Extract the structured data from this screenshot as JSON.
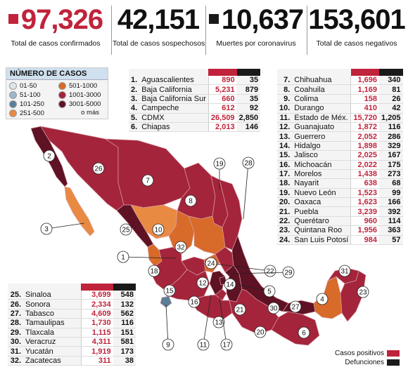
{
  "header": {
    "confirmed": {
      "value": "97,326",
      "label": "Total de casos confirmados",
      "color": "#c0233b"
    },
    "suspected": {
      "value": "42,151",
      "label": "Total de casos sospechosos"
    },
    "deaths": {
      "value": "10,637",
      "label": "Muertes por coronavirus",
      "color": "#1a1a1a"
    },
    "negative": {
      "value": "153,601",
      "label": "Total de casos negativos"
    }
  },
  "legend": {
    "title": "NÚMERO DE CASOS",
    "items": [
      {
        "label": "01-50",
        "color": "#dfe6ea"
      },
      {
        "label": "501-1000",
        "color": "#d86a2a"
      },
      {
        "label": "51-100",
        "color": "#9fb7c8"
      },
      {
        "label": "1001-3000",
        "color": "#a4243b"
      },
      {
        "label": "101-250",
        "color": "#5b7f99"
      },
      {
        "label": "3001-5000",
        "color": "#5e1224"
      },
      {
        "label": "251-500",
        "color": "#e98a42"
      }
    ],
    "more": "o más"
  },
  "colors": {
    "confirmed": "#c0233b",
    "deaths": "#1a1a1a",
    "ocean": "#ffffff",
    "stateStroke": "#d9a0a8"
  },
  "states": [
    {
      "n": "1.",
      "name": "Aguascalientes",
      "cases": "890",
      "deaths": "35"
    },
    {
      "n": "2.",
      "name": "Baja California",
      "cases": "5,231",
      "deaths": "879"
    },
    {
      "n": "3.",
      "name": "Baja California Sur",
      "cases": "660",
      "deaths": "35"
    },
    {
      "n": "4.",
      "name": "Campeche",
      "cases": "612",
      "deaths": "92"
    },
    {
      "n": "5.",
      "name": "CDMX",
      "cases": "26,509",
      "deaths": "2,850"
    },
    {
      "n": "6.",
      "name": "Chiapas",
      "cases": "2,013",
      "deaths": "146"
    },
    {
      "n": "7.",
      "name": "Chihuahua",
      "cases": "1,696",
      "deaths": "340"
    },
    {
      "n": "8.",
      "name": "Coahuila",
      "cases": "1,169",
      "deaths": "81"
    },
    {
      "n": "9.",
      "name": "Colima",
      "cases": "158",
      "deaths": "26"
    },
    {
      "n": "10.",
      "name": "Durango",
      "cases": "410",
      "deaths": "42"
    },
    {
      "n": "11.",
      "name": "Estado de Méx.",
      "cases": "15,720",
      "deaths": "1,205"
    },
    {
      "n": "12.",
      "name": "Guanajuato",
      "cases": "1,872",
      "deaths": "116"
    },
    {
      "n": "13.",
      "name": "Guerrero",
      "cases": "2,052",
      "deaths": "286"
    },
    {
      "n": "14.",
      "name": "Hidalgo",
      "cases": "1,898",
      "deaths": "329"
    },
    {
      "n": "15.",
      "name": "Jalisco",
      "cases": "2,025",
      "deaths": "167"
    },
    {
      "n": "16.",
      "name": "Michoacán",
      "cases": "2,022",
      "deaths": "175"
    },
    {
      "n": "17.",
      "name": "Morelos",
      "cases": "1,438",
      "deaths": "273"
    },
    {
      "n": "18.",
      "name": "Nayarit",
      "cases": "638",
      "deaths": "68"
    },
    {
      "n": "19.",
      "name": "Nuevo León",
      "cases": "1,523",
      "deaths": "99"
    },
    {
      "n": "20.",
      "name": "Oaxaca",
      "cases": "1,623",
      "deaths": "166"
    },
    {
      "n": "21.",
      "name": "Puebla",
      "cases": "3,239",
      "deaths": "392"
    },
    {
      "n": "22.",
      "name": "Querétaro",
      "cases": "960",
      "deaths": "114"
    },
    {
      "n": "23.",
      "name": "Quintana Roo",
      "cases": "1,956",
      "deaths": "363"
    },
    {
      "n": "24.",
      "name": "San Luis Potosí",
      "cases": "984",
      "deaths": "57"
    },
    {
      "n": "25.",
      "name": "Sinaloa",
      "cases": "3,699",
      "deaths": "548"
    },
    {
      "n": "26.",
      "name": "Sonora",
      "cases": "2,334",
      "deaths": "132"
    },
    {
      "n": "27.",
      "name": "Tabasco",
      "cases": "4,609",
      "deaths": "562"
    },
    {
      "n": "28.",
      "name": "Tamaulipas",
      "cases": "1,730",
      "deaths": "116"
    },
    {
      "n": "29.",
      "name": "Tlaxcala",
      "cases": "1,115",
      "deaths": "151"
    },
    {
      "n": "30.",
      "name": "Veracruz",
      "cases": "4,311",
      "deaths": "581"
    },
    {
      "n": "31.",
      "name": "Yucatán",
      "cases": "1,919",
      "deaths": "173"
    },
    {
      "n": "32.",
      "name": "Zacatecas",
      "cases": "311",
      "deaths": "38"
    }
  ],
  "map_labels": [
    "1",
    "2",
    "3",
    "4",
    "5",
    "6",
    "7",
    "8",
    "9",
    "10",
    "11",
    "12",
    "13",
    "14",
    "15",
    "16",
    "17",
    "18",
    "19",
    "20",
    "21",
    "22",
    "23",
    "24",
    "25",
    "26",
    "27",
    "28",
    "29",
    "30",
    "31",
    "32"
  ],
  "footer": {
    "positive": "Casos positivos",
    "deaths": "Defunciones"
  }
}
